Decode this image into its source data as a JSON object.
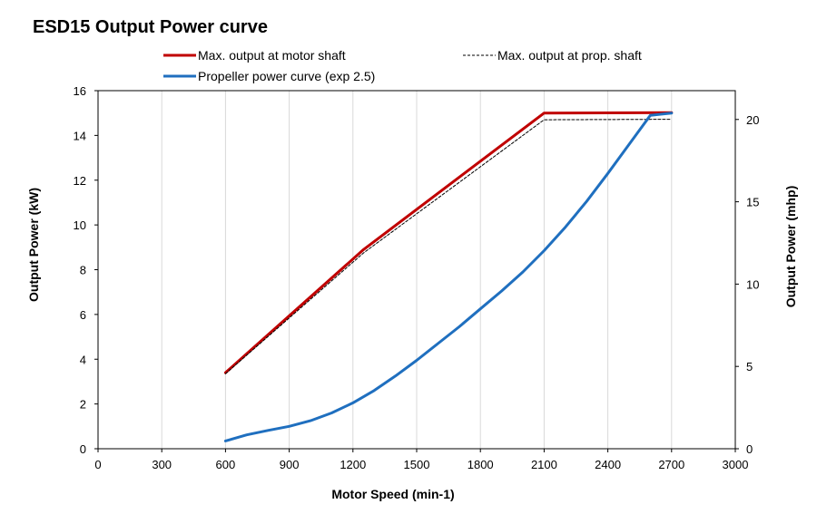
{
  "chart_data": {
    "type": "line",
    "title": "ESD15 Output Power curve",
    "xlabel": "Motor Speed (min-1)",
    "ylabel": "Output Power (kW)",
    "y2label": "Output Power (mhp)",
    "xlim": [
      0,
      3000
    ],
    "ylim": [
      0,
      16
    ],
    "y2lim": [
      0,
      21.75
    ],
    "x_ticks": [
      0,
      300,
      600,
      900,
      1200,
      1500,
      1800,
      2100,
      2400,
      2700,
      3000
    ],
    "y_ticks": [
      0,
      2,
      4,
      6,
      8,
      10,
      12,
      14,
      16
    ],
    "y2_ticks": [
      0,
      5,
      10,
      15,
      20
    ],
    "grid": "vertical",
    "legend_position": "top",
    "series": [
      {
        "name": "Max. output at motor shaft",
        "color": "#c00000",
        "style": "solid",
        "x": [
          600,
          1250,
          2100,
          2700
        ],
        "y": [
          3.4,
          8.9,
          15.0,
          15.02
        ]
      },
      {
        "name": "Max. output at prop. shaft",
        "color": "#000000",
        "style": "dashed",
        "x": [
          600,
          1250,
          2100,
          2700
        ],
        "y": [
          3.35,
          8.75,
          14.7,
          14.72
        ]
      },
      {
        "name": "Propeller power curve (exp 2.5)",
        "color": "#1f6fbf",
        "style": "solid",
        "x": [
          600,
          700,
          800,
          900,
          1000,
          1100,
          1200,
          1300,
          1400,
          1500,
          1600,
          1700,
          1800,
          1900,
          2000,
          2100,
          2200,
          2300,
          2400,
          2500,
          2600,
          2700
        ],
        "y": [
          0.35,
          0.62,
          0.82,
          1.0,
          1.25,
          1.6,
          2.05,
          2.6,
          3.25,
          3.95,
          4.7,
          5.45,
          6.25,
          7.05,
          7.9,
          8.85,
          9.9,
          11.05,
          12.3,
          13.6,
          14.9,
          15.0
        ]
      }
    ]
  }
}
